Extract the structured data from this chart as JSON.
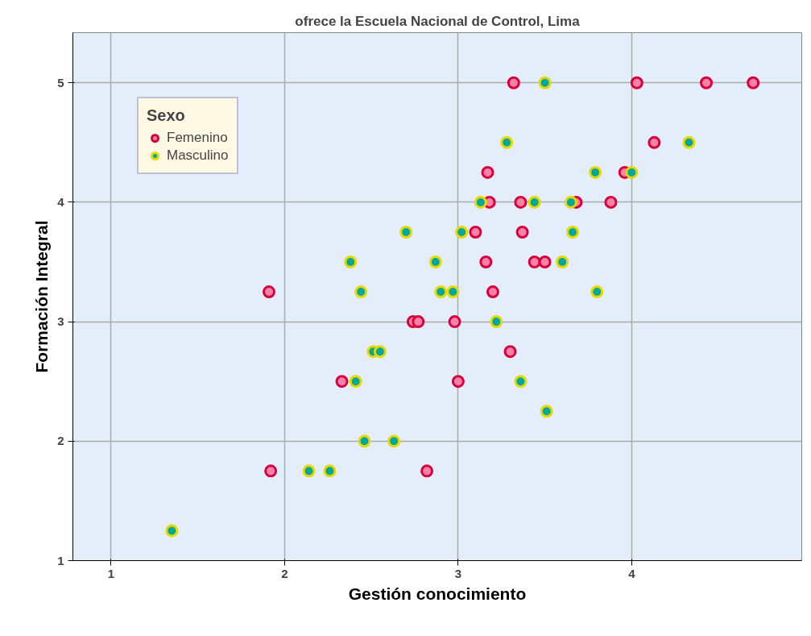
{
  "chart_data": {
    "type": "scatter",
    "title": "ofrece la Escuela Nacional de Control, Lima",
    "xlabel": "Gestión conocimiento",
    "ylabel": "Formación Integral",
    "legend_title": "Sexo",
    "legend": "top left",
    "grid": true,
    "marker": "circle",
    "xlim": [
      0.78,
      4.98
    ],
    "ylim": [
      1,
      5.42
    ],
    "xticks": [
      1,
      2,
      3,
      4
    ],
    "yticks": [
      1,
      2,
      3,
      4,
      5
    ],
    "series": [
      {
        "name": "Femenino",
        "color": "#ff80a8",
        "x": [
          3.32,
          4.03,
          4.43,
          4.7,
          4.13,
          3.17,
          3.96,
          3.18,
          3.36,
          3.68,
          3.88,
          3.1,
          3.37,
          3.16,
          3.44,
          3.5,
          1.91,
          3.2,
          2.74,
          2.77,
          2.98,
          3.3,
          2.33,
          3.0,
          1.92,
          2.82
        ],
        "values": [
          5,
          5,
          5,
          5,
          4.5,
          4.25,
          4.25,
          4,
          4,
          4,
          4,
          3.75,
          3.75,
          3.5,
          3.5,
          3.5,
          3.25,
          3.25,
          3,
          3,
          3,
          2.75,
          2.5,
          2.5,
          1.75,
          1.75
        ]
      },
      {
        "name": "Masculino",
        "color": "#00a89a",
        "x": [
          3.5,
          3.28,
          4.33,
          3.79,
          4.0,
          3.13,
          3.44,
          3.65,
          2.7,
          3.02,
          3.66,
          2.38,
          2.87,
          3.6,
          2.44,
          2.9,
          2.97,
          3.8,
          3.22,
          2.51,
          2.55,
          2.41,
          3.36,
          3.51,
          2.46,
          2.63,
          2.14,
          2.26,
          1.35
        ],
        "values": [
          5,
          4.5,
          4.5,
          4.25,
          4.25,
          4,
          4,
          4,
          3.75,
          3.75,
          3.75,
          3.5,
          3.5,
          3.5,
          3.25,
          3.25,
          3.25,
          3.25,
          3,
          2.75,
          2.75,
          2.5,
          2.5,
          2.25,
          2,
          2,
          1.75,
          1.75,
          1.25
        ]
      }
    ]
  }
}
